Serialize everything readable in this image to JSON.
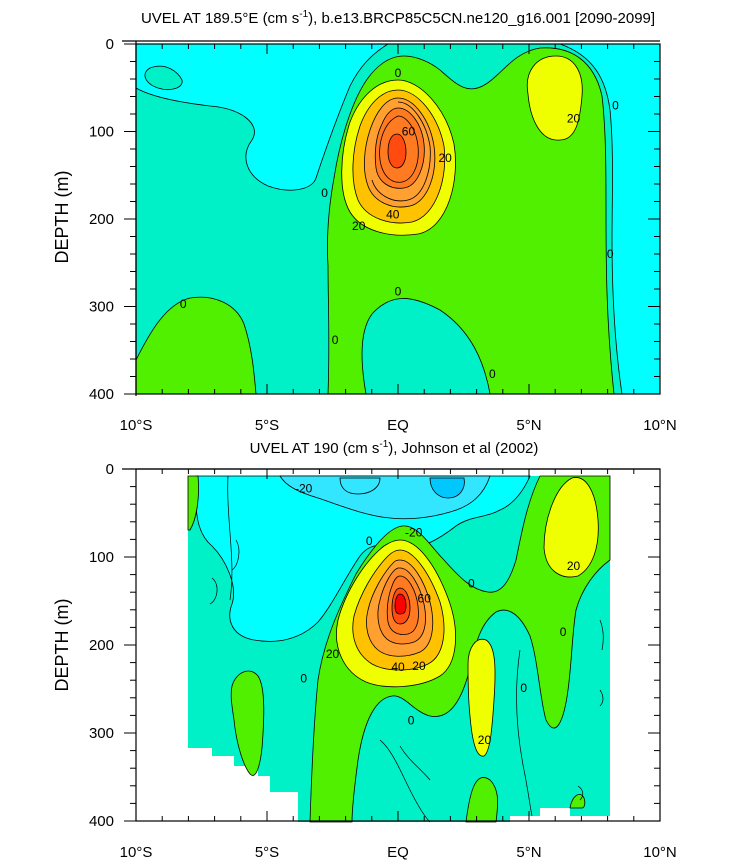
{
  "chart_data": [
    {
      "type": "contour",
      "title_main": "UVEL AT 189.5°E (cm s",
      "title_sup": "-1",
      "title_rest": "), b.e13.BRCP85C5CN.ne120_g16.001 [2090-2099]",
      "ylabel": "DEPTH (m)",
      "xlabel": "",
      "xlim": [
        -10,
        10
      ],
      "ylim": [
        0,
        400
      ],
      "y_inverted": true,
      "x_ticks": [
        "10°S",
        "5°S",
        "EQ",
        "5°N",
        "10°N"
      ],
      "y_ticks": [
        "0",
        "100",
        "200",
        "300",
        "400"
      ],
      "contour_interval_cm_s": 10,
      "features": [
        {
          "kind": "max",
          "lat": 0.0,
          "depth": 125,
          "value": 70
        },
        {
          "kind": "max",
          "lat": 5.8,
          "depth": 80,
          "value": 20
        },
        {
          "kind": "min",
          "lat": -9.5,
          "depth": 20,
          "value": 0
        }
      ],
      "contour_labels": [
        {
          "text": "0",
          "lat": 0.0,
          "depth": 33
        },
        {
          "text": "0",
          "lat": 8.3,
          "depth": 70
        },
        {
          "text": "20",
          "lat": 6.7,
          "depth": 85
        },
        {
          "text": "60",
          "lat": 0.4,
          "depth": 100
        },
        {
          "text": "20",
          "lat": 1.8,
          "depth": 130
        },
        {
          "text": "0",
          "lat": -2.8,
          "depth": 170
        },
        {
          "text": "40",
          "lat": -0.2,
          "depth": 195
        },
        {
          "text": "20",
          "lat": -1.5,
          "depth": 208
        },
        {
          "text": "0",
          "lat": 8.1,
          "depth": 240
        },
        {
          "text": "0",
          "lat": 0.0,
          "depth": 283
        },
        {
          "text": "0",
          "lat": -8.2,
          "depth": 297
        },
        {
          "text": "0",
          "lat": -2.4,
          "depth": 338
        },
        {
          "text": "0",
          "lat": 3.6,
          "depth": 377
        }
      ]
    },
    {
      "type": "contour",
      "title_main": "UVEL AT 190 (cm s",
      "title_sup": "-1",
      "title_rest": "), Johnson et al (2002)",
      "ylabel": "DEPTH (m)",
      "xlabel": "",
      "xlim": [
        -10,
        10
      ],
      "ylim": [
        0,
        400
      ],
      "y_inverted": true,
      "x_ticks": [
        "10°S",
        "5°S",
        "EQ",
        "5°N",
        "10°N"
      ],
      "y_ticks": [
        "0",
        "100",
        "200",
        "300",
        "400"
      ],
      "contour_interval_cm_s": 10,
      "data_extent_lat": [
        -8,
        8
      ],
      "features": [
        {
          "kind": "max",
          "lat": 0.0,
          "depth": 150,
          "value": 80
        },
        {
          "kind": "max",
          "lat": 6.0,
          "depth": 70,
          "value": 20
        },
        {
          "kind": "max",
          "lat": 3.1,
          "depth": 240,
          "value": 20
        },
        {
          "kind": "min",
          "lat": 1.5,
          "depth": 30,
          "value": -30
        }
      ],
      "contour_labels": [
        {
          "text": "-20",
          "lat": -3.6,
          "depth": 22
        },
        {
          "text": "-20",
          "lat": 0.6,
          "depth": 72
        },
        {
          "text": "0",
          "lat": -1.1,
          "depth": 82
        },
        {
          "text": "20",
          "lat": 6.7,
          "depth": 110
        },
        {
          "text": "0",
          "lat": 2.8,
          "depth": 130
        },
        {
          "text": "60",
          "lat": 1.0,
          "depth": 147
        },
        {
          "text": "0",
          "lat": 6.3,
          "depth": 185
        },
        {
          "text": "20",
          "lat": -2.5,
          "depth": 210
        },
        {
          "text": "40",
          "lat": 0.0,
          "depth": 225
        },
        {
          "text": "20",
          "lat": 0.8,
          "depth": 224
        },
        {
          "text": "0",
          "lat": -3.6,
          "depth": 238
        },
        {
          "text": "0",
          "lat": 4.8,
          "depth": 249
        },
        {
          "text": "20",
          "lat": 3.3,
          "depth": 308
        },
        {
          "text": "0",
          "lat": 0.5,
          "depth": 286
        }
      ]
    }
  ],
  "colors": {
    "neg_30": "#00c8ff",
    "neg_20": "#33f0ff",
    "neg_10": "#00ffff",
    "zero": "#00f0c8",
    "pos_10": "#50f000",
    "pos_20": "#f0ff00",
    "pos_30": "#ffc200",
    "pos_40": "#ffa030",
    "pos_60": "#ff7a20",
    "pos_70": "#ff4a10",
    "pos_80": "#ff0000",
    "line": "#000000"
  }
}
